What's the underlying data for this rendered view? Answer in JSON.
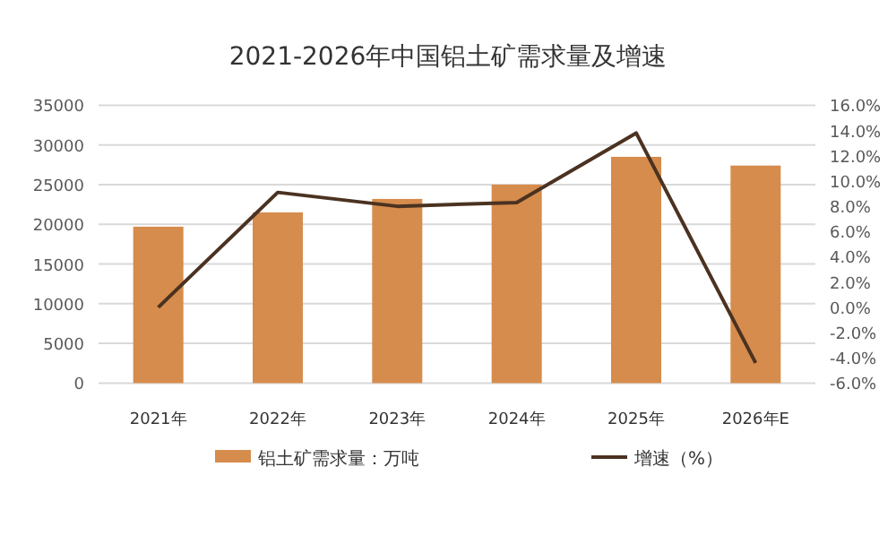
{
  "chart_data": {
    "type": "bar",
    "title": "2021-2026年中国铝土矿需求量及增速",
    "categories": [
      "2021年",
      "2022年",
      "2023年",
      "2024年",
      "2025年",
      "2026年E"
    ],
    "series": [
      {
        "name": "铝土矿需求量：万吨",
        "color": "#d68c4c",
        "values": [
          19700,
          21500,
          23200,
          25000,
          28500,
          27400
        ]
      },
      {
        "name": "增速（%）",
        "type": "line",
        "axis": "y2",
        "color": "#4b3221",
        "values": [
          0,
          9.1,
          8.0,
          8.3,
          13.8,
          -4.4
        ]
      }
    ],
    "ylim": [
      0,
      35000
    ],
    "yticks": [
      0,
      5000,
      10000,
      15000,
      20000,
      25000,
      30000,
      35000
    ],
    "y2lim": [
      -6,
      16
    ],
    "y2ticks": [
      {
        "value": -6,
        "label": "-6.0%"
      },
      {
        "value": -4,
        "label": "-4.0%"
      },
      {
        "value": -2,
        "label": "-2.0%"
      },
      {
        "value": 0,
        "label": "0.0%"
      },
      {
        "value": 2,
        "label": "2.0%"
      },
      {
        "value": 4,
        "label": "4.0%"
      },
      {
        "value": 6,
        "label": "6.0%"
      },
      {
        "value": 8,
        "label": "8.0%"
      },
      {
        "value": 10,
        "label": "10.0%"
      },
      {
        "value": 12,
        "label": "12.0%"
      },
      {
        "value": 14,
        "label": "14.0%"
      },
      {
        "value": 16,
        "label": "16.0%"
      }
    ],
    "grid": "y",
    "legend": "bottom"
  }
}
